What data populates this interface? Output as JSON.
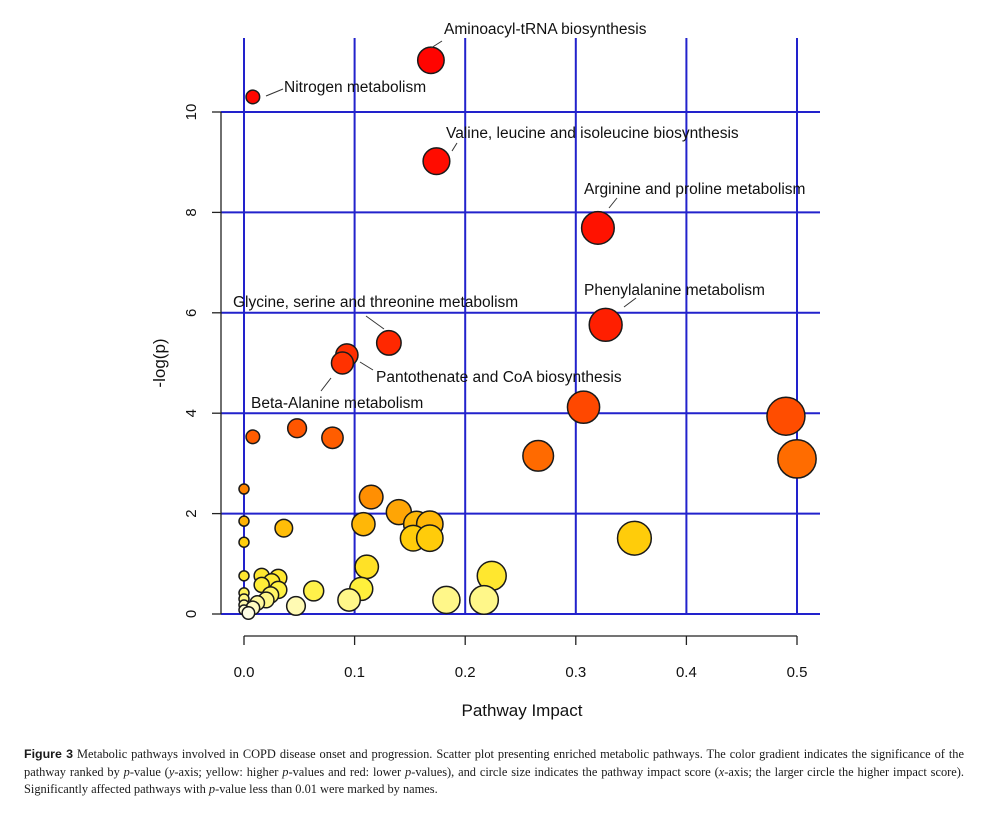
{
  "chart_data": {
    "type": "scatter",
    "title": "",
    "xlabel": "Pathway Impact",
    "ylabel": "-log(p)",
    "xlim": [
      -0.02,
      0.52
    ],
    "ylim": [
      -0.2,
      11.6
    ],
    "grid": true,
    "grid_color": "#2222cc",
    "x_ticks": [
      0.0,
      0.1,
      0.2,
      0.3,
      0.4,
      0.5
    ],
    "x_tick_labels": [
      "0.0",
      "0.1",
      "0.2",
      "0.3",
      "0.4",
      "0.5"
    ],
    "y_ticks": [
      0,
      2,
      4,
      6,
      8,
      10
    ],
    "y_tick_labels": [
      "0",
      "2",
      "4",
      "6",
      "8",
      "10"
    ],
    "color_scale": {
      "low_significance": "#ffffe0",
      "mid": "#ffd700",
      "high": "#ff8c00",
      "highest": "#ff0000"
    },
    "points": [
      {
        "x": 0.169,
        "y": 11.03,
        "label": "Aminoacyl-tRNA biosynthesis"
      },
      {
        "x": 0.008,
        "y": 10.3,
        "label": "Nitrogen metabolism"
      },
      {
        "x": 0.174,
        "y": 9.02,
        "label": "Valine, leucine and isoleucine biosynthesis"
      },
      {
        "x": 0.32,
        "y": 7.69,
        "label": "Arginine and proline metabolism"
      },
      {
        "x": 0.327,
        "y": 5.76,
        "label": "Phenylalanine metabolism"
      },
      {
        "x": 0.131,
        "y": 5.4,
        "label": "Glycine, serine and threonine metabolism"
      },
      {
        "x": 0.093,
        "y": 5.16,
        "label": "Pantothenate and CoA biosynthesis"
      },
      {
        "x": 0.089,
        "y": 5.0,
        "label": "Beta-Alanine metabolism"
      },
      {
        "x": 0.307,
        "y": 4.12,
        "label": ""
      },
      {
        "x": 0.49,
        "y": 3.94,
        "label": ""
      },
      {
        "x": 0.5,
        "y": 3.09,
        "label": ""
      },
      {
        "x": 0.266,
        "y": 3.15,
        "label": ""
      },
      {
        "x": 0.008,
        "y": 3.53,
        "label": ""
      },
      {
        "x": 0.048,
        "y": 3.7,
        "label": ""
      },
      {
        "x": 0.08,
        "y": 3.51,
        "label": ""
      },
      {
        "x": 0.0,
        "y": 2.49,
        "label": ""
      },
      {
        "x": 0.0,
        "y": 1.85,
        "label": ""
      },
      {
        "x": 0.0,
        "y": 1.43,
        "label": ""
      },
      {
        "x": 0.036,
        "y": 1.71,
        "label": ""
      },
      {
        "x": 0.115,
        "y": 2.33,
        "label": ""
      },
      {
        "x": 0.14,
        "y": 2.03,
        "label": ""
      },
      {
        "x": 0.108,
        "y": 1.79,
        "label": ""
      },
      {
        "x": 0.156,
        "y": 1.79,
        "label": ""
      },
      {
        "x": 0.168,
        "y": 1.79,
        "label": ""
      },
      {
        "x": 0.153,
        "y": 1.51,
        "label": ""
      },
      {
        "x": 0.168,
        "y": 1.51,
        "label": ""
      },
      {
        "x": 0.353,
        "y": 1.51,
        "label": ""
      },
      {
        "x": 0.111,
        "y": 0.94,
        "label": ""
      },
      {
        "x": 0.224,
        "y": 0.76,
        "label": ""
      },
      {
        "x": 0.106,
        "y": 0.5,
        "label": ""
      },
      {
        "x": 0.095,
        "y": 0.28,
        "label": ""
      },
      {
        "x": 0.183,
        "y": 0.28,
        "label": ""
      },
      {
        "x": 0.217,
        "y": 0.28,
        "label": ""
      },
      {
        "x": 0.063,
        "y": 0.46,
        "label": ""
      },
      {
        "x": 0.047,
        "y": 0.16,
        "label": ""
      },
      {
        "x": 0.0,
        "y": 0.76,
        "label": ""
      },
      {
        "x": 0.016,
        "y": 0.76,
        "label": ""
      },
      {
        "x": 0.031,
        "y": 0.72,
        "label": ""
      },
      {
        "x": 0.025,
        "y": 0.64,
        "label": ""
      },
      {
        "x": 0.016,
        "y": 0.58,
        "label": ""
      },
      {
        "x": 0.031,
        "y": 0.48,
        "label": ""
      },
      {
        "x": 0.024,
        "y": 0.38,
        "label": ""
      },
      {
        "x": 0.0,
        "y": 0.42,
        "label": ""
      },
      {
        "x": 0.0,
        "y": 0.3,
        "label": ""
      },
      {
        "x": 0.02,
        "y": 0.28,
        "label": ""
      },
      {
        "x": 0.012,
        "y": 0.22,
        "label": ""
      },
      {
        "x": 0.0,
        "y": 0.18,
        "label": ""
      },
      {
        "x": 0.008,
        "y": 0.12,
        "label": ""
      },
      {
        "x": 0.0,
        "y": 0.08,
        "label": ""
      },
      {
        "x": 0.004,
        "y": 0.02,
        "label": ""
      }
    ],
    "annotations": [
      {
        "text": "Aminoacyl-tRNA biosynthesis",
        "point": 0
      },
      {
        "text": "Nitrogen metabolism",
        "point": 1
      },
      {
        "text": "Valine, leucine and isoleucine biosynthesis",
        "point": 2
      },
      {
        "text": "Arginine and proline metabolism",
        "point": 3
      },
      {
        "text": "Phenylalanine metabolism",
        "point": 4
      },
      {
        "text": "Glycine, serine and threonine metabolism",
        "point": 5
      },
      {
        "text": "Pantothenate and CoA biosynthesis",
        "point": 6
      },
      {
        "text": "Beta-Alanine metabolism",
        "point": 7
      }
    ]
  },
  "caption": {
    "figure_label": "Figure 3",
    "text_parts": [
      " Metabolic pathways involved in COPD disease onset and progression. Scatter plot presenting enriched metabolic pathways. The color gradient indicates the significance of the pathway ranked by ",
      "p",
      "-value (",
      "y",
      "-axis; yellow: higher ",
      "p",
      "-values and red: lower ",
      "p",
      "-values), and circle size indicates the pathway impact score (",
      "x",
      "-axis; the larger circle the higher impact score). Significantly affected pathways with ",
      "p",
      "-value less than 0.01 were marked by names."
    ]
  }
}
